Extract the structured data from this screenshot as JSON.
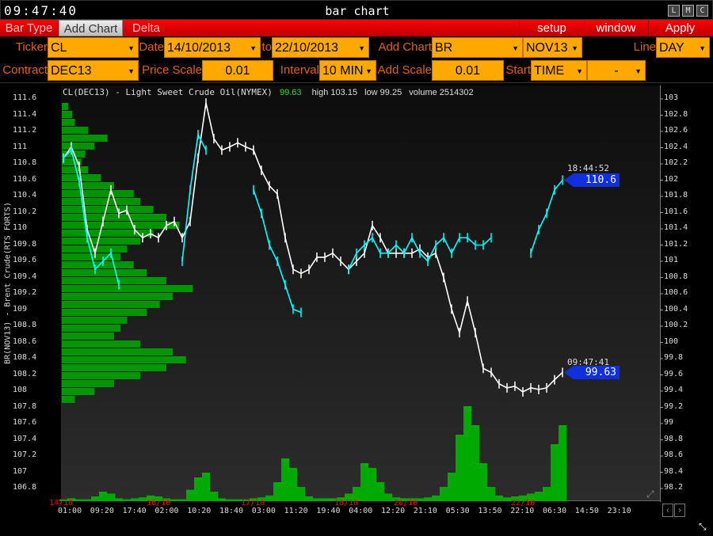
{
  "window": {
    "clock": "09:47:40",
    "title": "bar chart",
    "buttons": [
      "L",
      "M",
      "C"
    ]
  },
  "menu": {
    "bar_type": "Bar Type",
    "add_chart": "Add Chart",
    "delta": "Delta",
    "setup": "setup",
    "window": "window",
    "apply": "Apply"
  },
  "form": {
    "ticker_label": "Ticker",
    "ticker": "CL",
    "date_label": "Date",
    "date_from": "14/10/2013",
    "to_label": "to",
    "date_to": "22/10/2013",
    "add_chart_label": "Add Chart",
    "add_chart": "BR",
    "add_contract": "NOV13",
    "line_label": "Line",
    "line": "DAY",
    "contract_label": "Contract",
    "contract": "DEC13",
    "price_scale_label": "Price Scale",
    "price_scale": "0.01",
    "interval_label": "Interval",
    "interval": "10 MIN",
    "add_scale_label": "Add Scale",
    "add_scale": "0.01",
    "start_label": "Start",
    "start": "TIME",
    "start2": "-"
  },
  "colors": {
    "cl_series": "#ffffff",
    "br_series": "#00ffff",
    "volume": "#00aa00",
    "last_tag": "#1030e0",
    "date_labels": "#ff0000",
    "accent_field": "#ffa800"
  },
  "chart_data": {
    "type": "line",
    "legend": {
      "name": "CL(DEC13) - Light Sweet Crude Oil(NYMEX)",
      "last": "99.63",
      "high": "high 103.15",
      "low": "low 99.25",
      "volume": "volume 2514302"
    },
    "left_axis_label": "BR(NOV13) - Brent Crude(RTS FORTS)",
    "left_ticks": [
      "111.6",
      "111.4",
      "111.2",
      "111",
      "110.8",
      "110.6",
      "110.4",
      "110.2",
      "110",
      "109.8",
      "109.6",
      "109.4",
      "109.2",
      "109",
      "108.8",
      "108.6",
      "108.4",
      "108.2",
      "108",
      "107.8",
      "107.6",
      "107.4",
      "107.2",
      "107",
      "106.8"
    ],
    "right_ticks": [
      "103",
      "102.8",
      "102.6",
      "102.4",
      "102.2",
      "102",
      "101.8",
      "101.6",
      "101.4",
      "101.2",
      "101",
      "100.8",
      "100.6",
      "100.4",
      "100.2",
      "100",
      "99.8",
      "99.6",
      "99.4",
      "99.2",
      "99",
      "98.8",
      "98.6",
      "98.4",
      "98.2"
    ],
    "left_ylim": [
      106.8,
      111.6
    ],
    "right_ylim": [
      98.2,
      103
    ],
    "x_time_ticks": [
      "01:00",
      "09:20",
      "17:40",
      "02:00",
      "10:20",
      "18:40",
      "03:00",
      "11:20",
      "19:40",
      "04:00",
      "12:20",
      "21:10",
      "05:30",
      "13:50",
      "22:10",
      "06:30",
      "14:50",
      "23:10"
    ],
    "x_date_ticks": [
      "14/10",
      "16/10",
      "17/10",
      "18/10",
      "20/10",
      "22/10"
    ],
    "series": [
      {
        "name": "CL(DEC13)",
        "axis": "right",
        "values": [
          102.27,
          102.41,
          102.17,
          101.39,
          101.1,
          101.49,
          101.88,
          101.59,
          101.63,
          101.39,
          101.29,
          101.34,
          101.29,
          101.44,
          101.49,
          101.29,
          101.49,
          102.27,
          102.95,
          102.51,
          102.37,
          102.41,
          102.46,
          102.41,
          102.37,
          102.12,
          101.93,
          101.83,
          101.29,
          100.9,
          100.85,
          100.9,
          101.05,
          101.05,
          101.1,
          101.0,
          100.9,
          101.0,
          101.1,
          101.44,
          101.29,
          101.1,
          101.1,
          101.1,
          101.1,
          101.15,
          101.05,
          101.1,
          100.8,
          100.41,
          100.12,
          100.51,
          100.12,
          99.68,
          99.63,
          99.49,
          99.44,
          99.46,
          99.39,
          99.44,
          99.42,
          99.44,
          99.54,
          99.63
        ],
        "last": {
          "time": "09:47:41",
          "value": "99.63"
        }
      },
      {
        "name": "BR(NOV13)",
        "axis": "left",
        "values": [
          110.87,
          110.97,
          110.58,
          109.89,
          109.5,
          109.6,
          109.7,
          109.31,
          null,
          null,
          null,
          null,
          null,
          null,
          null,
          109.6,
          110.48,
          111.16,
          110.97,
          null,
          null,
          null,
          null,
          null,
          110.48,
          110.19,
          109.8,
          109.6,
          109.31,
          109.01,
          108.97,
          null,
          null,
          null,
          null,
          null,
          109.5,
          109.7,
          109.8,
          109.89,
          109.7,
          109.7,
          109.8,
          109.7,
          109.89,
          109.7,
          109.6,
          109.8,
          109.89,
          109.7,
          109.89,
          109.89,
          109.8,
          109.8,
          109.89,
          null,
          null,
          null,
          null,
          109.7,
          109.99,
          110.19,
          110.48,
          110.6
        ],
        "last": {
          "time": "18:44:52",
          "value": "110.6"
        }
      }
    ],
    "volume": [
      2,
      3,
      2,
      2,
      5,
      10,
      8,
      3,
      2,
      3,
      4,
      6,
      5,
      3,
      2,
      2,
      12,
      25,
      30,
      10,
      3,
      2,
      2,
      2,
      3,
      4,
      6,
      20,
      45,
      35,
      15,
      5,
      3,
      3,
      3,
      4,
      8,
      15,
      40,
      35,
      20,
      8,
      4,
      3,
      3,
      3,
      4,
      6,
      15,
      30,
      70,
      100,
      80,
      40,
      15,
      6,
      4,
      5,
      6,
      8,
      10,
      15,
      60,
      80
    ],
    "volume_profile": [
      5,
      8,
      10,
      20,
      35,
      25,
      18,
      15,
      20,
      30,
      40,
      55,
      60,
      70,
      80,
      90,
      70,
      60,
      50,
      45,
      55,
      65,
      80,
      100,
      85,
      75,
      65,
      50,
      45,
      40,
      60,
      85,
      95,
      80,
      60,
      40,
      25,
      10
    ]
  }
}
